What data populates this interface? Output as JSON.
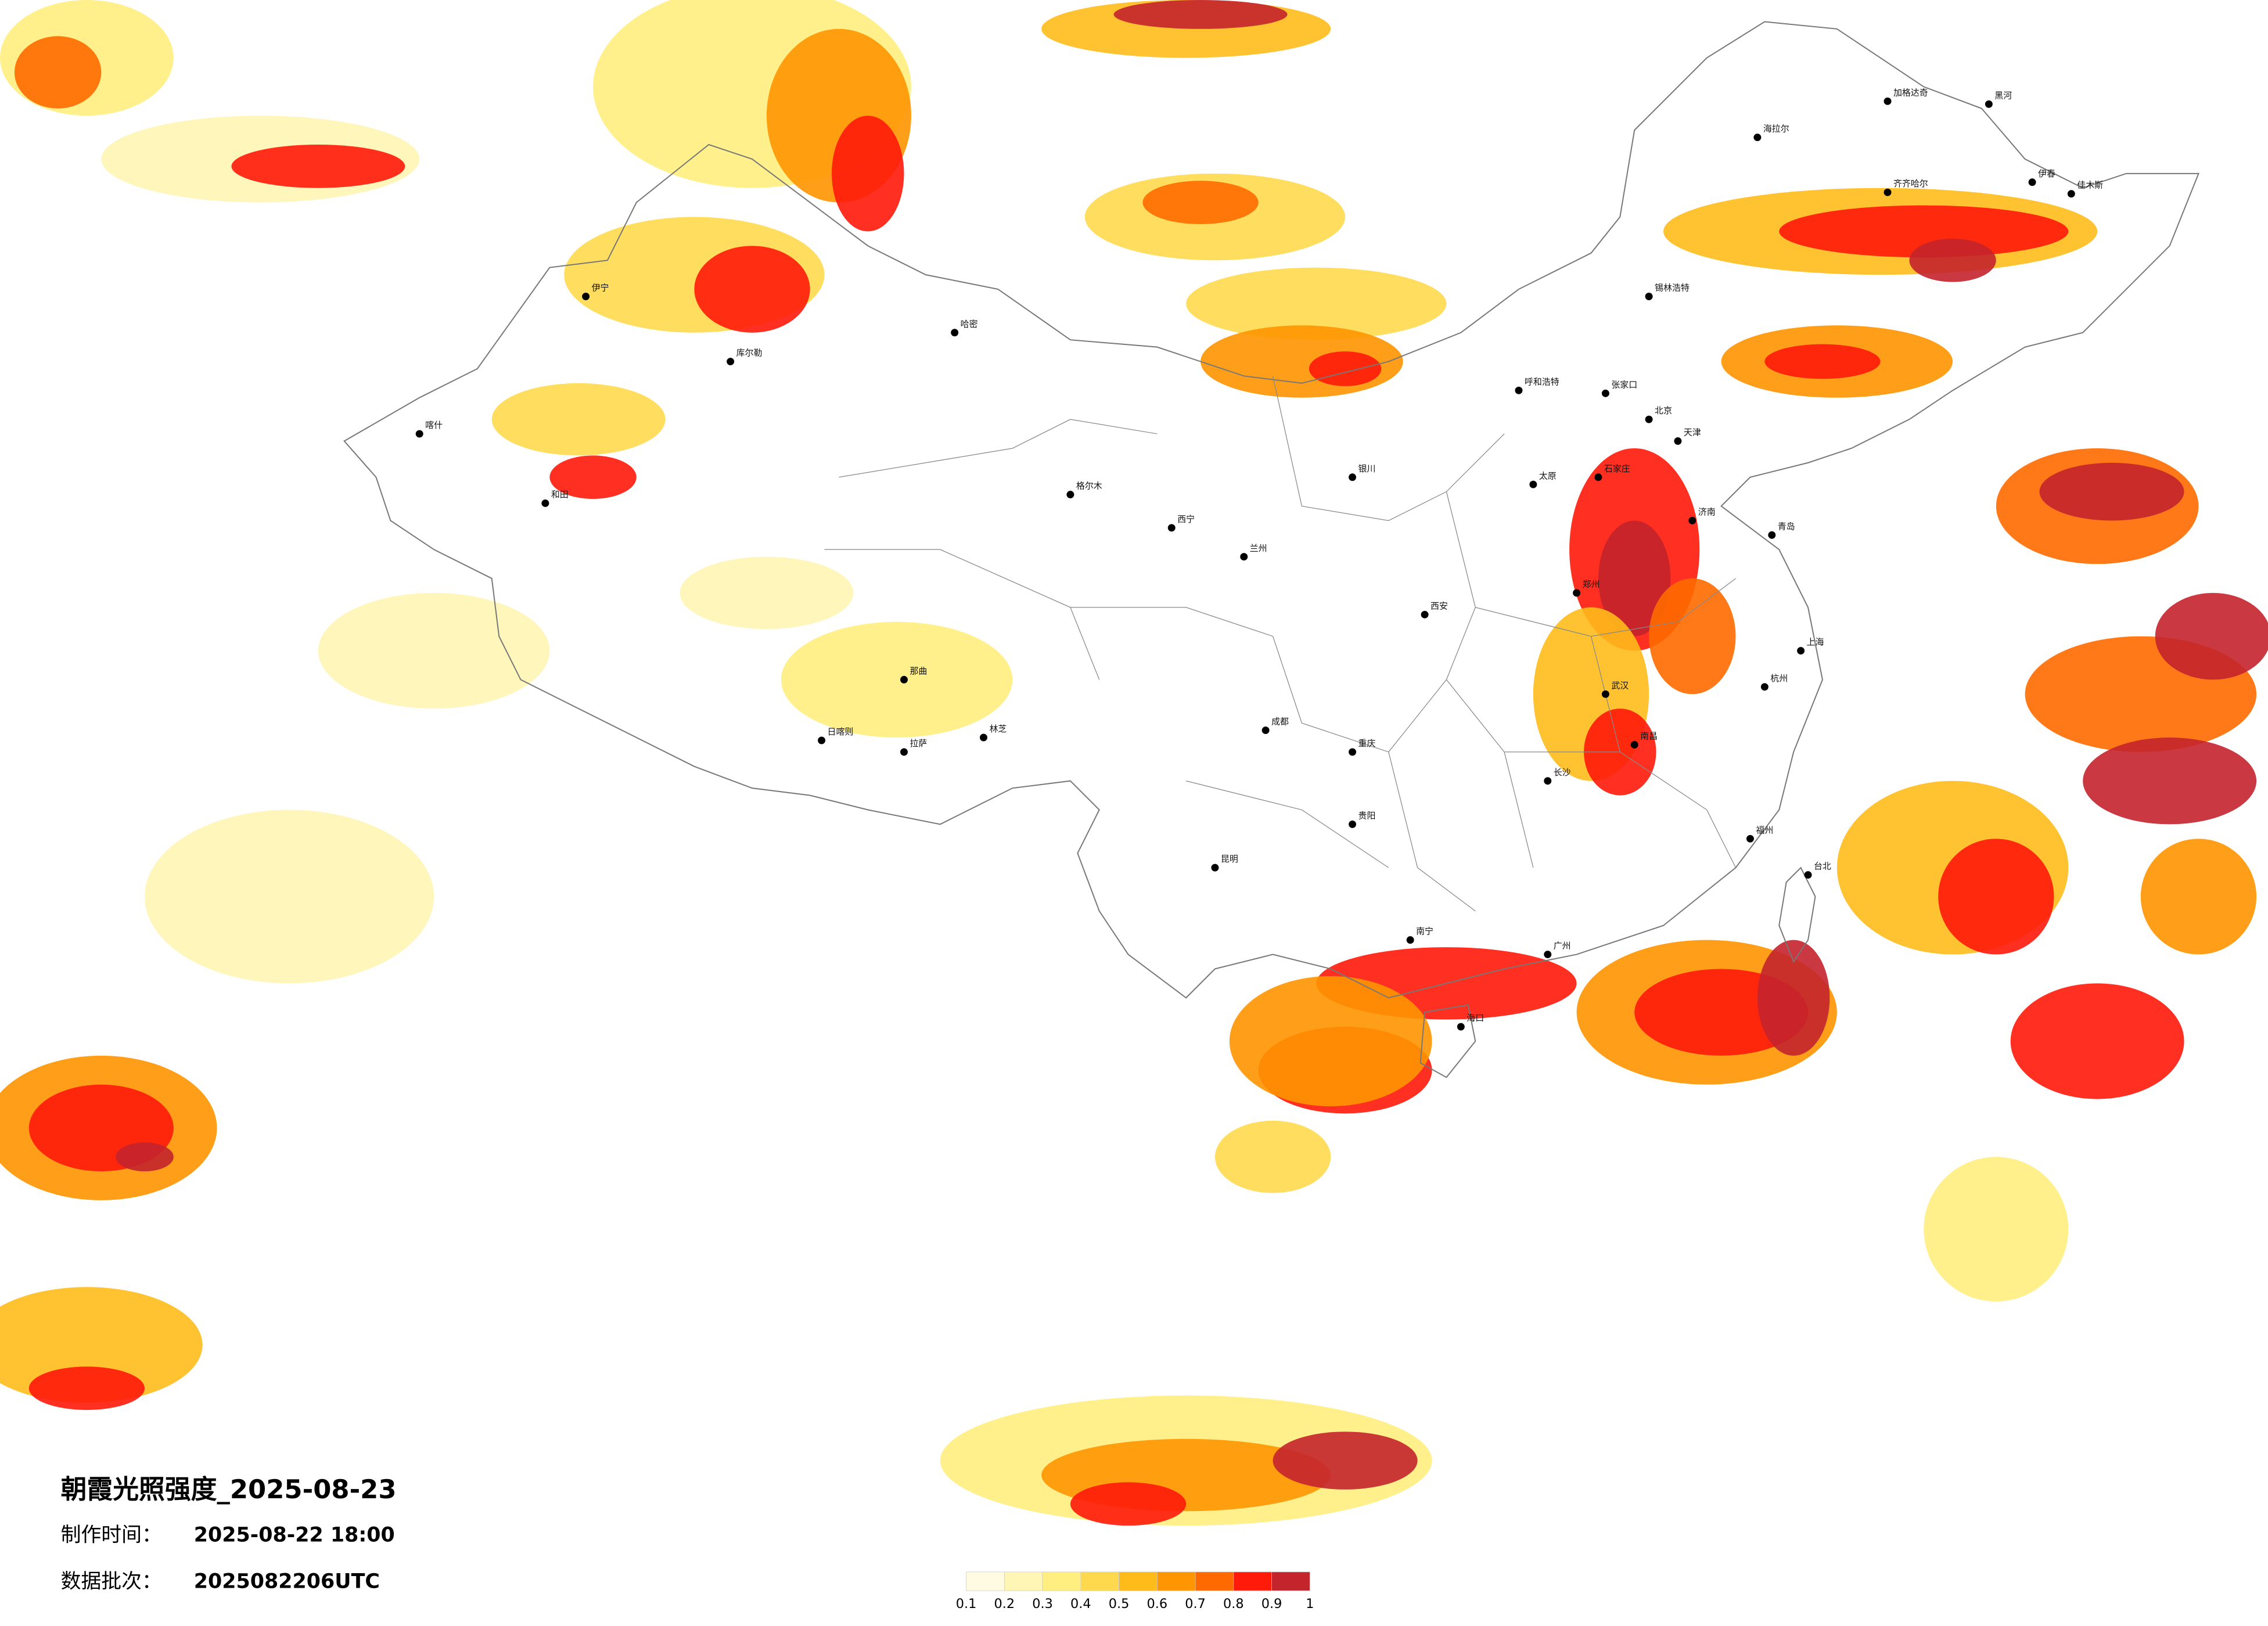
{
  "title": "朝霞光照强度_2025-08-23",
  "production_time": {
    "label": "制作时间：",
    "value": "2025-08-22 18:00"
  },
  "data_batch": {
    "label": "数据批次：",
    "value": "2025082206UTC"
  },
  "legend": {
    "ticks": [
      0.1,
      0.2,
      0.3,
      0.4,
      0.5,
      0.6,
      0.7,
      0.8,
      0.9,
      1
    ],
    "colors": [
      "#fffbe3",
      "#fff5b5",
      "#ffee80",
      "#ffd94d",
      "#ffbb1a",
      "#ff9500",
      "#ff6a00",
      "#ff1a0a",
      "#c4242c"
    ]
  },
  "cities": [
    "海拉尔",
    "加格达奇",
    "黑河",
    "齐齐哈尔",
    "伊春",
    "佳木斯",
    "锡林浩特",
    "呼和浩特",
    "张家口",
    "北京",
    "天津",
    "石家庄",
    "太原",
    "济南",
    "青岛",
    "郑州",
    "西安",
    "兰州",
    "西宁",
    "银川",
    "成都",
    "重庆",
    "贵阳",
    "昆明",
    "南宁",
    "广州",
    "长沙",
    "武汉",
    "南昌",
    "杭州",
    "上海",
    "福州",
    "台北",
    "海口",
    "拉萨",
    "日喀则",
    "林芝",
    "和田",
    "喀什",
    "伊宁",
    "哈密",
    "库尔勒",
    "格尔木",
    "那曲"
  ]
}
